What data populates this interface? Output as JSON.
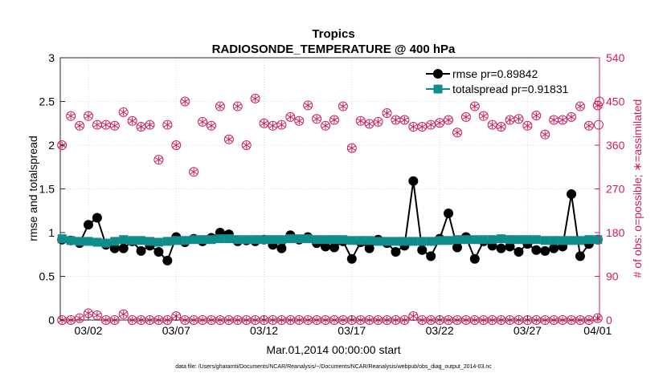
{
  "chart_data": {
    "type": "line",
    "title": "Tropics",
    "subtitle": "RADIOSONDE_TEMPERATURE @ 400 hPa",
    "xlabel": "Mar.01,2014 00:00:00 start",
    "ylabel": "rmse and totalspread",
    "y2label": "# of obs: o=possible; ∗=assimilated",
    "footnote": "data file: /Users/gharamti/Documents/NCAR/Reanalysis/~/Documents/NCAR/Reanalysis/webpub/obs_diag_output_2014-03.nc",
    "xlim": [
      0.4,
      31.1
    ],
    "ylim": [
      0,
      3
    ],
    "y2lim": [
      0,
      540
    ],
    "xticks": [
      {
        "value": 2,
        "label": "03/02"
      },
      {
        "value": 7,
        "label": "03/07"
      },
      {
        "value": 12,
        "label": "03/12"
      },
      {
        "value": 17,
        "label": "03/17"
      },
      {
        "value": 22,
        "label": "03/22"
      },
      {
        "value": 27,
        "label": "03/27"
      },
      {
        "value": 31,
        "label": "04/01"
      }
    ],
    "yticks": [
      {
        "value": 0,
        "label": "0"
      },
      {
        "value": 0.5,
        "label": "0.5"
      },
      {
        "value": 1,
        "label": "1"
      },
      {
        "value": 1.5,
        "label": "1.5"
      },
      {
        "value": 2,
        "label": "2"
      },
      {
        "value": 2.5,
        "label": "2.5"
      },
      {
        "value": 3,
        "label": "3"
      }
    ],
    "y2ticks": [
      {
        "value": 0,
        "label": "0"
      },
      {
        "value": 90,
        "label": "90"
      },
      {
        "value": 180,
        "label": "180"
      },
      {
        "value": 270,
        "label": "270"
      },
      {
        "value": 360,
        "label": "360"
      },
      {
        "value": 450,
        "label": "450"
      },
      {
        "value": 540,
        "label": "540"
      }
    ],
    "colors": {
      "rmse": "#000000",
      "spread": "#0f8c8c",
      "obs": "#cc1d5f",
      "axis2": "#cc1d5f"
    },
    "x": [
      0.5,
      1,
      1.5,
      2,
      2.5,
      3,
      3.5,
      4,
      4.5,
      5,
      5.5,
      6,
      6.5,
      7,
      7.5,
      8,
      8.5,
      9,
      9.5,
      10,
      10.5,
      11,
      11.5,
      12,
      12.5,
      13,
      13.5,
      14,
      14.5,
      15,
      15.5,
      16,
      16.5,
      17,
      17.5,
      18,
      18.5,
      19,
      19.5,
      20,
      20.5,
      21,
      21.5,
      22,
      22.5,
      23,
      23.5,
      24,
      24.5,
      25,
      25.5,
      26,
      26.5,
      27,
      27.5,
      28,
      28.5,
      29,
      29.5,
      30,
      30.5,
      31
    ],
    "series": [
      {
        "name": "rmse pr=0.89842",
        "axis": "left",
        "values": [
          0.92,
          0.91,
          0.88,
          1.09,
          1.17,
          0.86,
          0.82,
          0.82,
          0.9,
          0.79,
          0.85,
          0.78,
          0.68,
          0.95,
          0.89,
          0.93,
          0.9,
          0.94,
          1.0,
          0.98,
          0.9,
          0.91,
          0.9,
          0.92,
          0.86,
          0.82,
          0.97,
          0.92,
          0.95,
          0.88,
          0.84,
          0.83,
          0.9,
          0.7,
          0.89,
          0.82,
          0.92,
          0.88,
          0.78,
          0.85,
          1.59,
          0.8,
          0.73,
          0.93,
          1.22,
          0.83,
          0.95,
          0.7,
          0.9,
          0.85,
          0.82,
          0.84,
          0.78,
          0.87,
          0.8,
          0.79,
          0.82,
          0.84,
          1.44,
          0.73,
          0.87,
          0.92
        ]
      },
      {
        "name": "totalspread pr=0.91831",
        "axis": "left",
        "values": [
          0.93,
          0.91,
          0.9,
          0.9,
          0.89,
          0.88,
          0.9,
          0.92,
          0.91,
          0.91,
          0.9,
          0.89,
          0.9,
          0.91,
          0.91,
          0.92,
          0.92,
          0.92,
          0.93,
          0.93,
          0.92,
          0.92,
          0.92,
          0.92,
          0.92,
          0.92,
          0.93,
          0.93,
          0.93,
          0.92,
          0.92,
          0.92,
          0.92,
          0.91,
          0.91,
          0.91,
          0.9,
          0.9,
          0.9,
          0.9,
          0.9,
          0.9,
          0.9,
          0.91,
          0.91,
          0.92,
          0.92,
          0.92,
          0.92,
          0.92,
          0.93,
          0.92,
          0.92,
          0.92,
          0.92,
          0.91,
          0.91,
          0.91,
          0.91,
          0.91,
          0.92,
          0.92
        ]
      },
      {
        "name": "obs possible",
        "axis": "right",
        "values": [
          360,
          420,
          400,
          420,
          402,
          402,
          400,
          428,
          410,
          398,
          402,
          330,
          402,
          360,
          450,
          305,
          408,
          400,
          440,
          372,
          440,
          360,
          456,
          405,
          400,
          402,
          418,
          410,
          442,
          414,
          400,
          412,
          440,
          354,
          410,
          404,
          408,
          426,
          412,
          412,
          398,
          398,
          402,
          406,
          412,
          386,
          418,
          440,
          420,
          402,
          398,
          412,
          414,
          400,
          421,
          382,
          412,
          412,
          418,
          440,
          400,
          442,
          402,
          450
        ],
        "x": [
          0.5,
          1,
          1.5,
          2,
          2.5,
          3,
          3.5,
          4,
          4.5,
          5,
          5.5,
          6,
          6.5,
          7,
          7.5,
          8,
          8.5,
          9,
          9.5,
          10,
          10.5,
          11,
          11.5,
          12,
          12.5,
          13,
          13.5,
          14,
          14.5,
          15,
          15.5,
          16,
          16.5,
          17,
          17.5,
          18,
          18.5,
          19,
          19.5,
          20,
          20.5,
          21,
          21.5,
          22,
          22.5,
          23,
          23.5,
          24,
          24.5,
          25,
          25.5,
          26,
          26.5,
          27,
          27.5,
          28,
          28.5,
          29,
          29.5,
          30,
          30.5,
          31,
          31.05,
          31.1
        ]
      },
      {
        "name": "obs assimilated",
        "axis": "right",
        "values": [
          0,
          0,
          4,
          14,
          10,
          0,
          0,
          12,
          0,
          0,
          0,
          0,
          0,
          8,
          0,
          0,
          0,
          0,
          0,
          0,
          0,
          0,
          0,
          0,
          0,
          0,
          0,
          0,
          0,
          0,
          0,
          0,
          0,
          0,
          0,
          0,
          0,
          0,
          0,
          0,
          8,
          0,
          0,
          0,
          0,
          0,
          0,
          0,
          0,
          0,
          0,
          0,
          0,
          0,
          0,
          0,
          0,
          0,
          0,
          0,
          0,
          4
        ]
      }
    ],
    "legend": {
      "position": "top-right",
      "entries": [
        "rmse pr=0.89842",
        "totalspread pr=0.91831"
      ]
    }
  }
}
